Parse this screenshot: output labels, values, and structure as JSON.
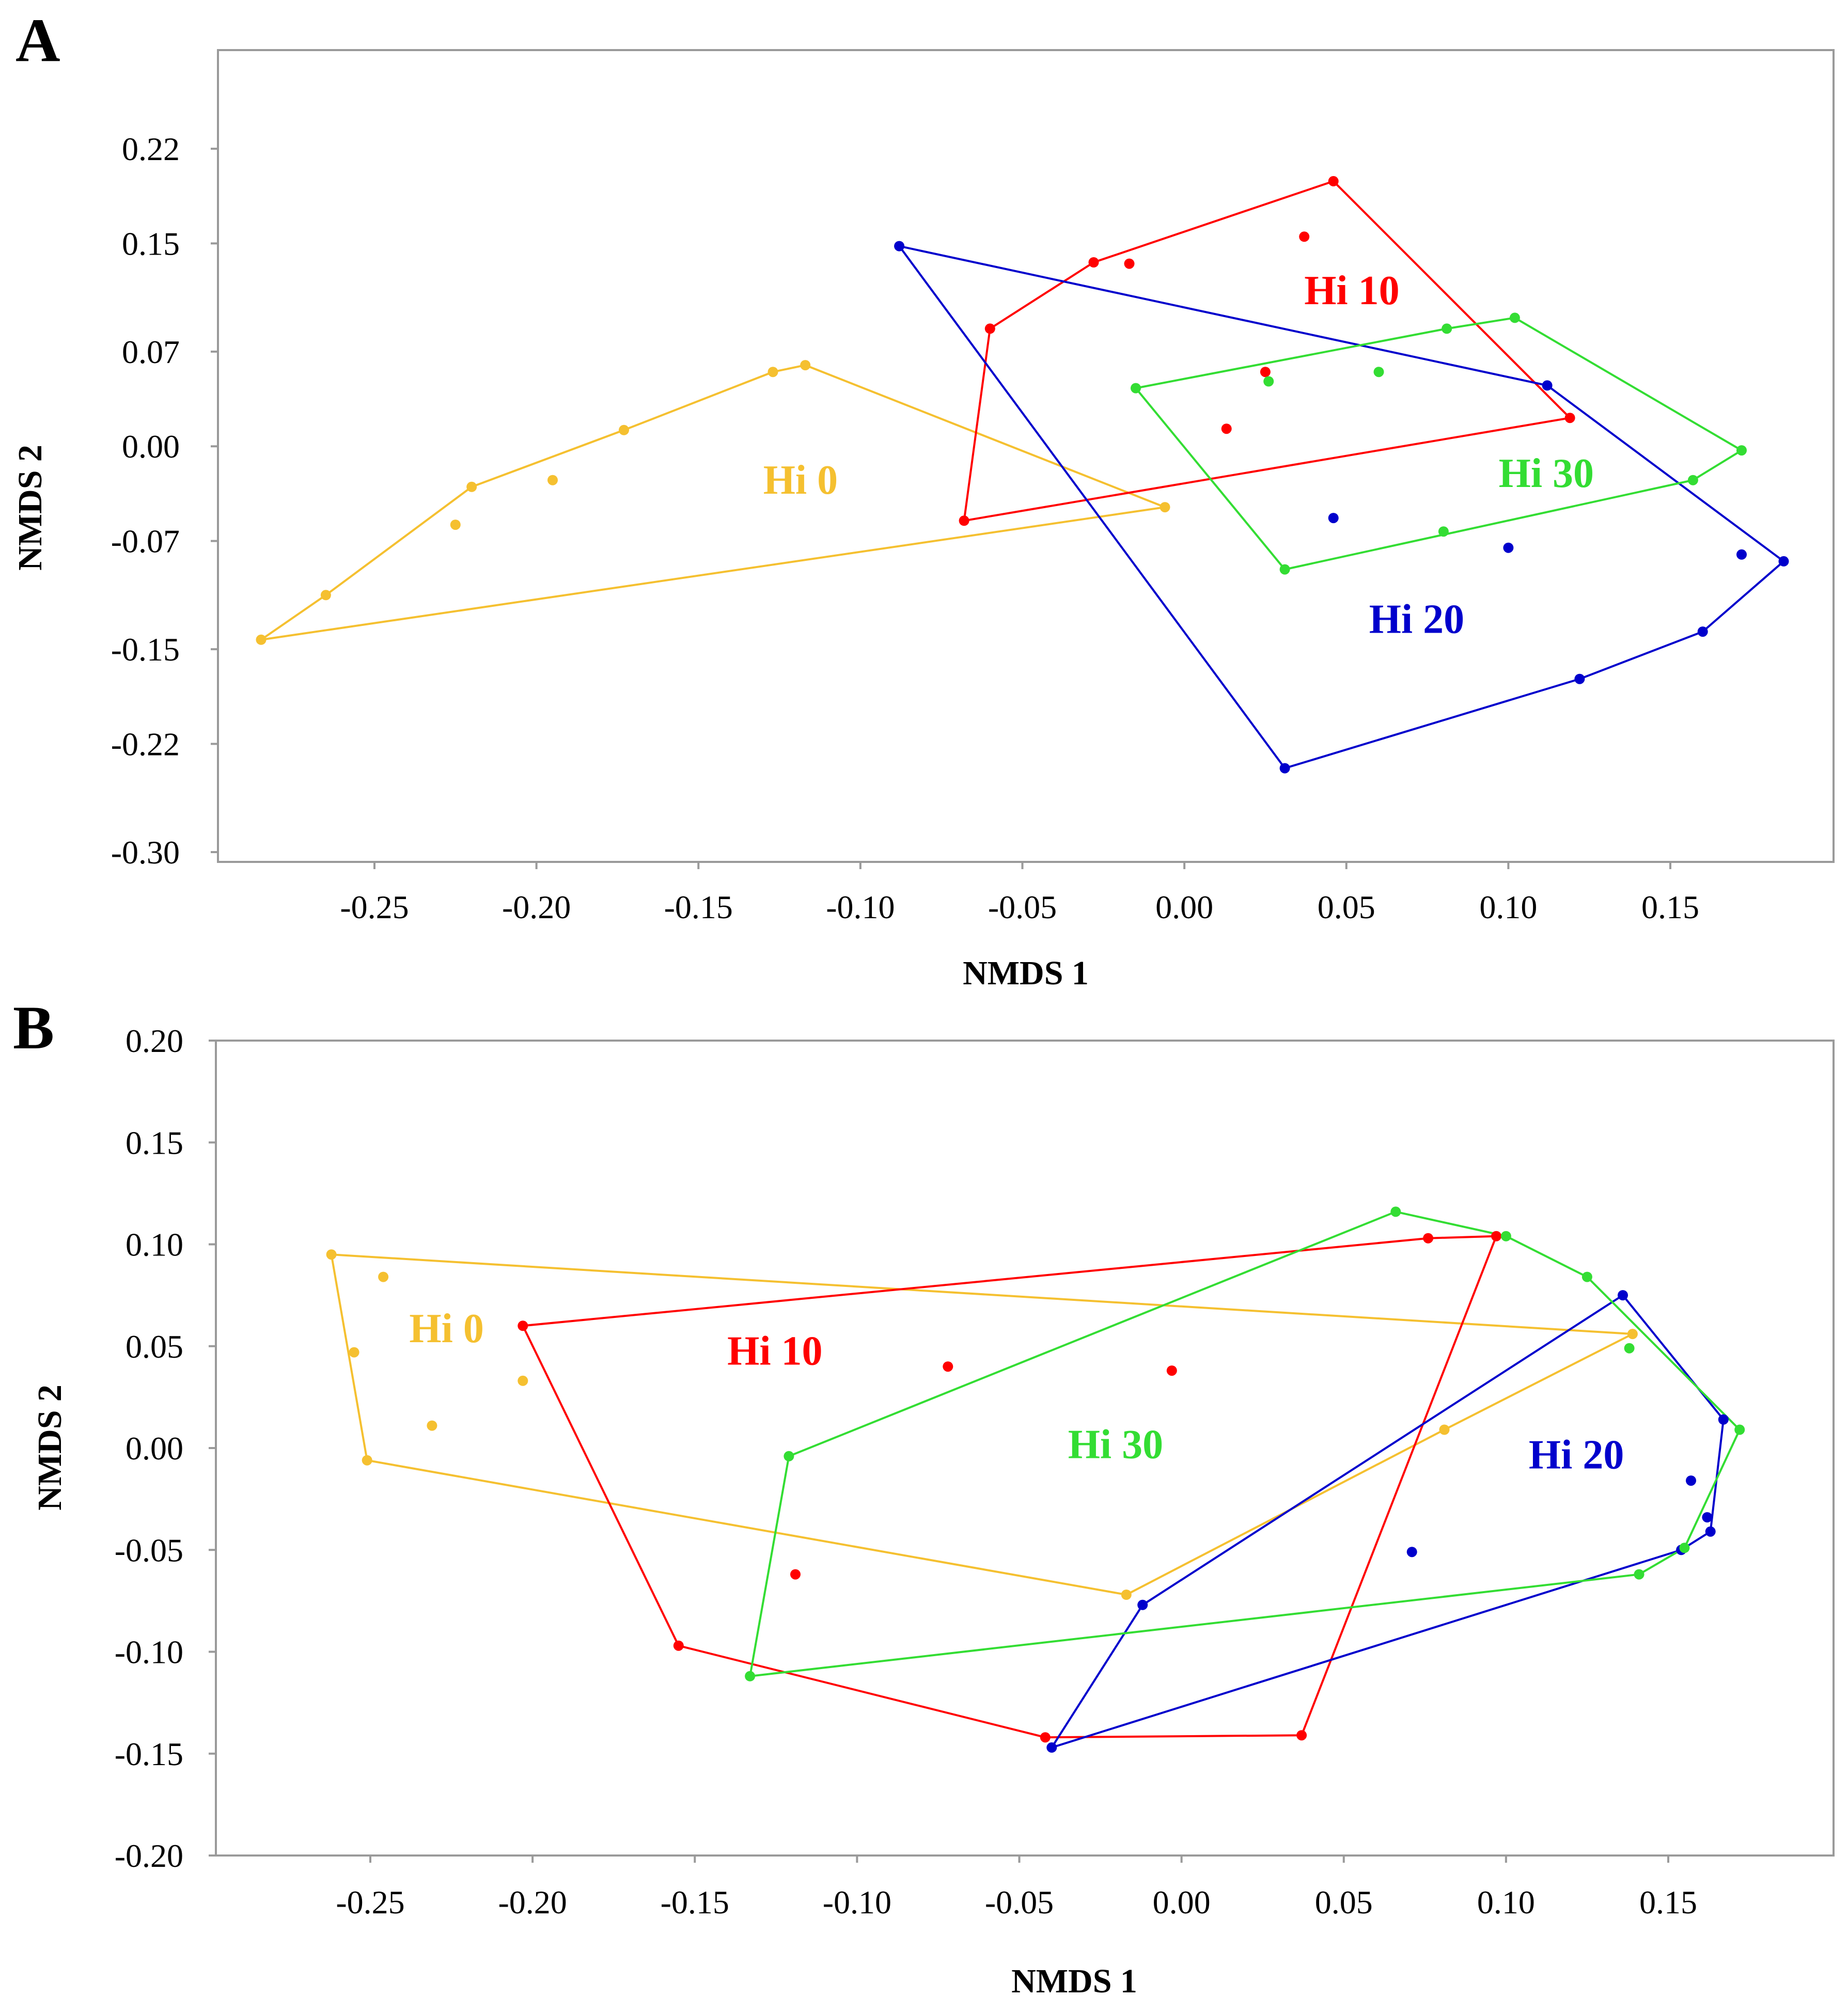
{
  "chart_data": [
    {
      "panel": "A",
      "type": "scatter",
      "xlabel": "NMDS 1",
      "ylabel": "NMDS 2",
      "xlim": [
        -0.3,
        0.2
      ],
      "ylim": [
        -0.3,
        0.27
      ],
      "xticks": [
        -0.25,
        -0.2,
        -0.15,
        -0.1,
        -0.05,
        0.0,
        0.05,
        0.1,
        0.15
      ],
      "xtick_labels": [
        "-0.25",
        "-0.20",
        "-0.15",
        "-0.10",
        "-0.05",
        "0.00",
        "0.05",
        "0.10",
        "0.15"
      ],
      "yticks": [
        0.22,
        0.15,
        0.07,
        0.0,
        -0.07,
        -0.15,
        -0.22,
        -0.3
      ],
      "ytick_labels": [
        "0.22",
        "0.15",
        "0.07",
        "0.00",
        "-0.07",
        "-0.15",
        "-0.22",
        "-0.30"
      ],
      "series": [
        {
          "name": "Hi 0",
          "color": "#f5c030",
          "label_at": [
            -0.13,
            -0.035
          ],
          "points": [
            [
              -0.285,
              -0.143
            ],
            [
              -0.265,
              -0.11
            ],
            [
              -0.22,
              -0.03
            ],
            [
              -0.225,
              -0.058
            ],
            [
              -0.195,
              -0.025
            ],
            [
              -0.173,
              0.012
            ],
            [
              -0.127,
              0.055
            ],
            [
              -0.117,
              0.06
            ],
            [
              -0.006,
              -0.045
            ]
          ],
          "hull": [
            [
              -0.285,
              -0.143
            ],
            [
              -0.265,
              -0.11
            ],
            [
              -0.22,
              -0.03
            ],
            [
              -0.173,
              0.012
            ],
            [
              -0.127,
              0.055
            ],
            [
              -0.117,
              0.06
            ],
            [
              -0.006,
              -0.045
            ]
          ]
        },
        {
          "name": "Hi 10",
          "color": "#ff0000",
          "label_at": [
            0.037,
            0.105
          ],
          "points": [
            [
              -0.068,
              -0.055
            ],
            [
              -0.06,
              0.087
            ],
            [
              -0.028,
              0.136
            ],
            [
              -0.017,
              0.135
            ],
            [
              0.046,
              0.196
            ],
            [
              0.037,
              0.155
            ],
            [
              0.025,
              0.055
            ],
            [
              0.013,
              0.013
            ],
            [
              0.119,
              0.021
            ]
          ],
          "hull": [
            [
              -0.068,
              -0.055
            ],
            [
              -0.06,
              0.087
            ],
            [
              -0.028,
              0.136
            ],
            [
              0.046,
              0.196
            ],
            [
              0.119,
              0.021
            ]
          ]
        },
        {
          "name": "Hi 20",
          "color": "#0000cc",
          "label_at": [
            0.057,
            -0.138
          ],
          "points": [
            [
              -0.088,
              0.148
            ],
            [
              0.112,
              0.045
            ],
            [
              0.185,
              -0.085
            ],
            [
              0.172,
              -0.08
            ],
            [
              0.16,
              -0.137
            ],
            [
              0.122,
              -0.172
            ],
            [
              0.031,
              -0.238
            ],
            [
              0.046,
              -0.053
            ],
            [
              0.1,
              -0.075
            ]
          ],
          "hull": [
            [
              -0.088,
              0.148
            ],
            [
              0.112,
              0.045
            ],
            [
              0.185,
              -0.085
            ],
            [
              0.16,
              -0.137
            ],
            [
              0.122,
              -0.172
            ],
            [
              0.031,
              -0.238
            ]
          ]
        },
        {
          "name": "Hi 30",
          "color": "#33dd33",
          "label_at": [
            0.097,
            -0.03
          ],
          "points": [
            [
              -0.015,
              0.043
            ],
            [
              0.031,
              -0.091
            ],
            [
              0.08,
              -0.063
            ],
            [
              0.157,
              -0.025
            ],
            [
              0.172,
              -0.003
            ],
            [
              0.102,
              0.095
            ],
            [
              0.081,
              0.087
            ],
            [
              0.06,
              0.055
            ],
            [
              0.026,
              0.048
            ]
          ],
          "hull": [
            [
              -0.015,
              0.043
            ],
            [
              0.031,
              -0.091
            ],
            [
              0.157,
              -0.025
            ],
            [
              0.172,
              -0.003
            ],
            [
              0.102,
              0.095
            ],
            [
              0.081,
              0.087
            ]
          ]
        }
      ]
    },
    {
      "panel": "B",
      "type": "scatter",
      "xlabel": "NMDS 1",
      "ylabel": "NMDS 2",
      "xlim": [
        -0.3,
        0.2
      ],
      "ylim": [
        -0.2,
        0.2
      ],
      "xticks": [
        -0.25,
        -0.2,
        -0.15,
        -0.1,
        -0.05,
        0.0,
        0.05,
        0.1,
        0.15
      ],
      "xtick_labels": [
        "-0.25",
        "-0.20",
        "-0.15",
        "-0.10",
        "-0.05",
        "0.00",
        "0.05",
        "0.10",
        "0.15"
      ],
      "yticks": [
        0.2,
        0.15,
        0.1,
        0.05,
        0.0,
        -0.05,
        -0.1,
        -0.15,
        -0.2
      ],
      "ytick_labels": [
        "0.20",
        "0.15",
        "0.10",
        "0.05",
        "0.00",
        "-0.05",
        "-0.10",
        "-0.15",
        "-0.20"
      ],
      "series": [
        {
          "name": "Hi 0",
          "color": "#f5c030",
          "label_at": [
            -0.238,
            0.052
          ],
          "points": [
            [
              -0.262,
              0.095
            ],
            [
              -0.246,
              0.084
            ],
            [
              -0.255,
              0.047
            ],
            [
              -0.203,
              0.033
            ],
            [
              -0.231,
              0.011
            ],
            [
              -0.251,
              -0.006
            ],
            [
              -0.017,
              -0.072
            ],
            [
              0.081,
              0.009
            ],
            [
              0.139,
              0.056
            ]
          ],
          "hull": [
            [
              -0.262,
              0.095
            ],
            [
              0.139,
              0.056
            ],
            [
              0.081,
              0.009
            ],
            [
              -0.017,
              -0.072
            ],
            [
              -0.251,
              -0.006
            ]
          ]
        },
        {
          "name": "Hi 10",
          "color": "#ff0000",
          "label_at": [
            -0.14,
            0.041
          ],
          "points": [
            [
              -0.203,
              0.06
            ],
            [
              -0.072,
              0.04
            ],
            [
              -0.003,
              0.038
            ],
            [
              -0.119,
              -0.062
            ],
            [
              -0.155,
              -0.097
            ],
            [
              -0.042,
              -0.142
            ],
            [
              0.037,
              -0.141
            ],
            [
              0.076,
              0.103
            ],
            [
              0.097,
              0.104
            ]
          ],
          "hull": [
            [
              -0.203,
              0.06
            ],
            [
              0.076,
              0.103
            ],
            [
              0.097,
              0.104
            ],
            [
              0.037,
              -0.141
            ],
            [
              -0.042,
              -0.142
            ],
            [
              -0.155,
              -0.097
            ]
          ]
        },
        {
          "name": "Hi 20",
          "color": "#0000cc",
          "label_at": [
            0.107,
            -0.01
          ],
          "points": [
            [
              0.136,
              0.075
            ],
            [
              0.167,
              0.014
            ],
            [
              0.157,
              -0.016
            ],
            [
              0.162,
              -0.034
            ],
            [
              0.163,
              -0.041
            ],
            [
              0.154,
              -0.05
            ],
            [
              0.071,
              -0.051
            ],
            [
              -0.012,
              -0.077
            ],
            [
              -0.04,
              -0.147
            ]
          ],
          "hull": [
            [
              0.136,
              0.075
            ],
            [
              0.167,
              0.014
            ],
            [
              0.163,
              -0.041
            ],
            [
              0.154,
              -0.05
            ],
            [
              -0.04,
              -0.147
            ],
            [
              -0.012,
              -0.077
            ]
          ]
        },
        {
          "name": "Hi 30",
          "color": "#33dd33",
          "label_at": [
            -0.035,
            -0.005
          ],
          "points": [
            [
              -0.121,
              -0.004
            ],
            [
              -0.133,
              -0.112
            ],
            [
              0.066,
              0.116
            ],
            [
              0.1,
              0.104
            ],
            [
              0.125,
              0.084
            ],
            [
              0.138,
              0.049
            ],
            [
              0.172,
              0.009
            ],
            [
              0.155,
              -0.049
            ],
            [
              0.141,
              -0.062
            ]
          ],
          "hull": [
            [
              -0.121,
              -0.004
            ],
            [
              0.066,
              0.116
            ],
            [
              0.1,
              0.104
            ],
            [
              0.125,
              0.084
            ],
            [
              0.172,
              0.009
            ],
            [
              0.155,
              -0.049
            ],
            [
              0.141,
              -0.062
            ],
            [
              -0.133,
              -0.112
            ]
          ]
        }
      ]
    }
  ]
}
